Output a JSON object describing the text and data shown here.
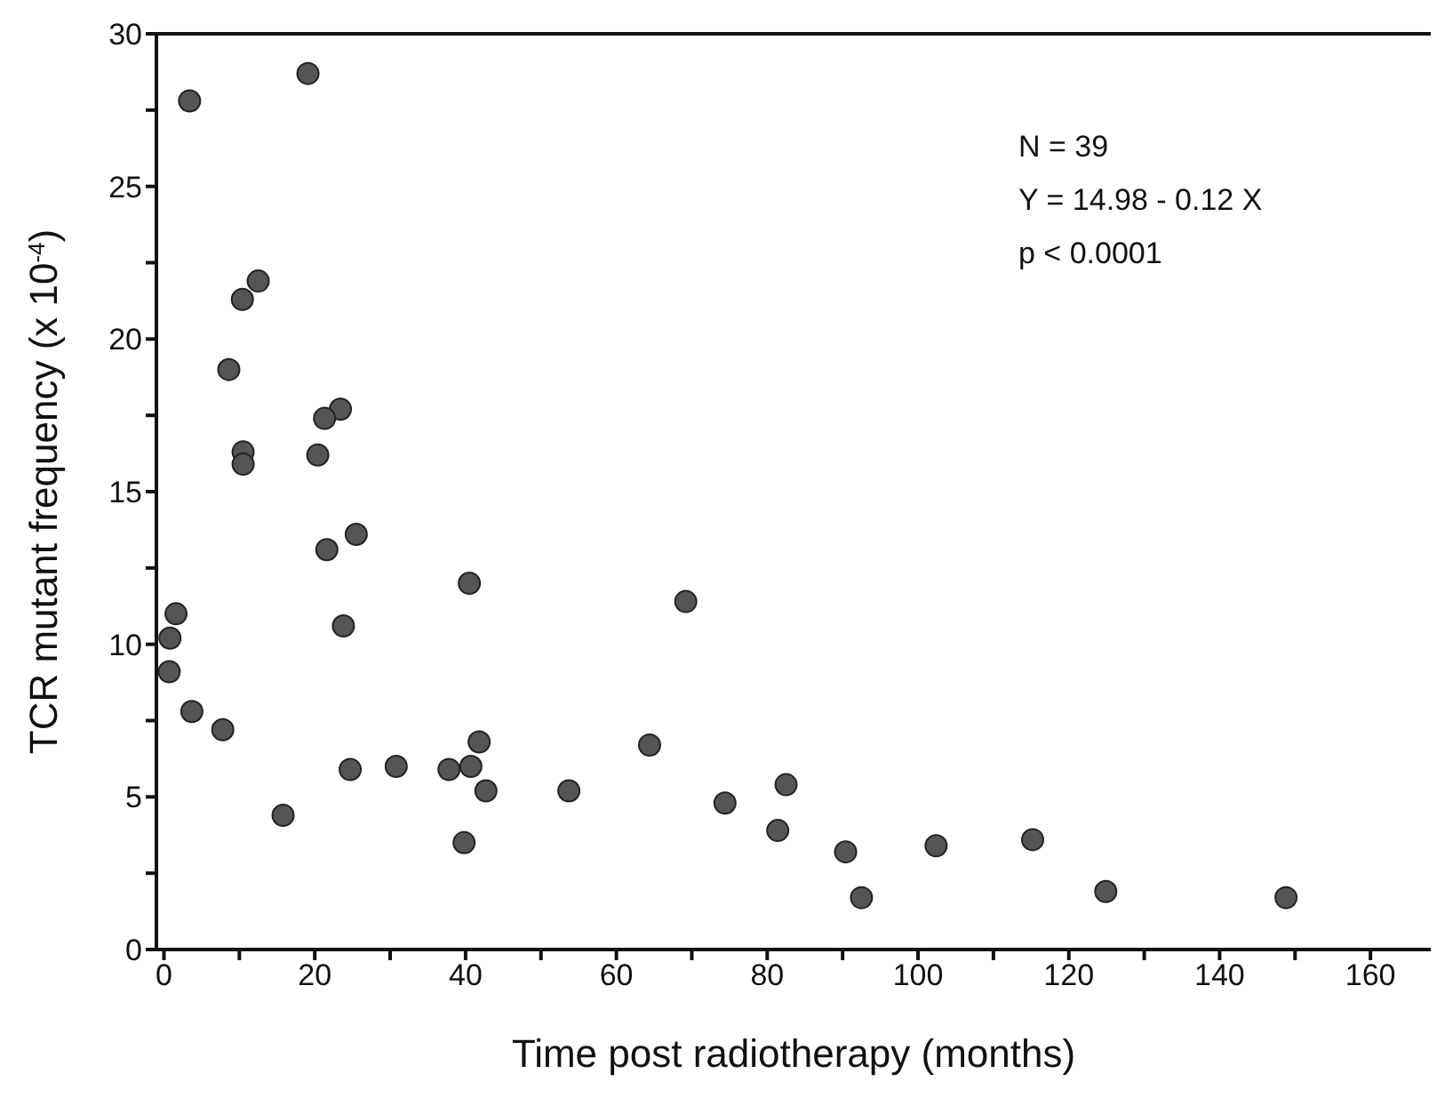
{
  "chart_data": {
    "type": "scatter",
    "xlabel": "Time post radiotherapy (months)",
    "ylabel": "TCR mutant frequency (x 10$^{-4}$)",
    "annotations": [
      "N = 39",
      "Y = 14.98 - 0.12 X",
      "p < 0.0001"
    ],
    "series": [
      {
        "color": "#555555",
        "x": [
          3.4,
          19.1,
          12.5,
          10.4,
          8.6,
          23.4,
          21.3,
          10.5,
          10.5,
          20.4,
          25.5,
          21.6,
          23.8,
          40.5,
          1.6,
          0.8,
          0.7,
          3.7,
          7.8,
          15.8,
          24.7,
          30.8,
          37.8,
          40.7,
          41.8,
          42.7,
          39.8,
          53.7,
          64.4,
          69.2,
          74.4,
          82.5,
          81.4,
          90.4,
          92.5,
          102.4,
          115.2,
          124.9,
          148.8
        ],
        "values": [
          27.8,
          28.7,
          21.9,
          21.3,
          19.0,
          17.7,
          17.4,
          16.3,
          15.9,
          16.2,
          13.6,
          13.1,
          10.6,
          12.0,
          11.0,
          10.2,
          9.1,
          7.8,
          7.2,
          4.4,
          5.9,
          6.0,
          5.9,
          6.0,
          6.8,
          5.2,
          3.5,
          5.2,
          6.7,
          11.4,
          4.8,
          5.4,
          3.9,
          3.2,
          1.7,
          3.4,
          3.6,
          1.9,
          1.7
        ]
      }
    ],
    "xlim": [
      -1,
      168
    ],
    "xticks": [
      0,
      {
        "value": 10,
        "label": null
      },
      20,
      {
        "value": 30,
        "label": null
      },
      40,
      {
        "value": 50,
        "label": null
      },
      60,
      {
        "value": 70,
        "label": null
      },
      80,
      {
        "value": 90,
        "label": null
      },
      100,
      {
        "value": 110,
        "label": null
      },
      120,
      {
        "value": 130,
        "label": null
      },
      140,
      {
        "value": 150,
        "label": null
      },
      160
    ],
    "ylim": [
      0,
      30
    ],
    "yticks": [
      0,
      {
        "value": 2.5,
        "label": null
      },
      5,
      {
        "value": 7.5,
        "label": null
      },
      10,
      {
        "value": 12.5,
        "label": null
      },
      15,
      {
        "value": 17.5,
        "label": null
      },
      20,
      {
        "value": 22.5,
        "label": null
      },
      25,
      {
        "value": 27.5,
        "label": null
      },
      30
    ],
    "grid": false,
    "legend": false,
    "marker": "circle"
  }
}
